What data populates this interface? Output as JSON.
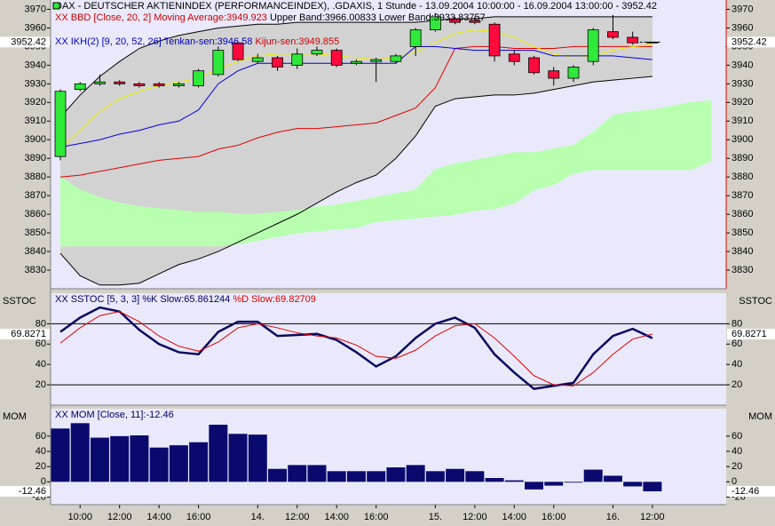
{
  "chart_data": [
    {
      "type": "candlestick",
      "legend": [
        [
          {
            "text": "DAX  - DEUTSCHER AKTIENINDEX (PERFORMANCEINDEX), .GDAXIS, 1 Stunde - 13.09.2004 10:00:00 - 16.09.2004 13:00:00 - 3952.42",
            "color": "#000000"
          }
        ],
        [
          {
            "text": "XX BBD [Close, 20, 2] Moving Average:3949.923",
            "color": "#d00000"
          },
          {
            "text": " Upper Band:3966.00833 Lower Band:3933.83757",
            "color": "#000000"
          }
        ],
        [
          {
            "text": "XX IKH(2) [9, 20, 52, 26] Tenkan-sen:3946.58",
            "color": "#0000c0"
          },
          {
            "text": " Kijun-sen:3949.855",
            "color": "#d00000"
          }
        ]
      ],
      "categories": [
        null,
        "10:00",
        null,
        "12:00",
        null,
        "14:00",
        null,
        "16:00",
        null,
        null,
        "14.",
        null,
        "12:00",
        null,
        "14:00",
        null,
        "16:00",
        null,
        null,
        "15.",
        null,
        "12:00",
        null,
        "14:00",
        null,
        "16:00",
        null,
        null,
        "16.",
        null,
        "12:00",
        null,
        null,
        null
      ],
      "open": [
        3891,
        3927,
        3930,
        3931,
        3930,
        3930,
        3929,
        3929,
        3935,
        3952,
        3942,
        3944,
        3940,
        3946,
        3948,
        3941,
        3942,
        3942,
        3950,
        3959,
        3965,
        3964,
        3962,
        3946,
        3944,
        3937,
        3933,
        3942,
        3958,
        3955,
        3952.42,
        null,
        null,
        null
      ],
      "high": [
        3927,
        3931,
        3935,
        3932,
        3931,
        3931,
        3931,
        3938,
        3950,
        3953,
        3946,
        3945,
        3949,
        3950,
        3949,
        3943,
        3944,
        3946,
        3960,
        3968,
        3966,
        3966,
        3963,
        3948,
        3945,
        3939,
        3940,
        3960,
        3967,
        3958,
        3952.42,
        null,
        null,
        null
      ],
      "low": [
        3889,
        3926,
        3929,
        3929,
        3928,
        3928,
        3928,
        3928,
        3934,
        3942,
        3941,
        3937,
        3938,
        3945,
        3939,
        3940,
        3931,
        3941,
        3945,
        3958,
        3962,
        3962,
        3942,
        3940,
        3935,
        3929,
        3931,
        3940,
        3954,
        3951,
        3952.42,
        null,
        null,
        null
      ],
      "close": [
        3926,
        3930,
        3931,
        3930,
        3929,
        3929,
        3930,
        3937,
        3948,
        3943,
        3944,
        3939,
        3946,
        3948,
        3940,
        3942,
        3943,
        3945,
        3959,
        3966,
        3963,
        3963,
        3945,
        3942,
        3936,
        3933,
        3939,
        3959,
        3955,
        3952,
        3952.42,
        null,
        null,
        null
      ],
      "up_color": "#2ee83a",
      "down_color": "#ff0a3c",
      "band_fill": "#d2d2d2",
      "cloud": {
        "color": "#b8ffb0",
        "upper": [
          3880,
          3873,
          3869,
          3866,
          3864,
          3863,
          3862,
          3861,
          3861,
          3860,
          3860,
          3861,
          3862,
          3864,
          3865,
          3867,
          3869,
          3871,
          3873,
          3884,
          3887,
          3889,
          3891,
          3893,
          3893,
          3895,
          3897,
          3904,
          3913,
          3915,
          3916,
          3918,
          3920,
          3921
        ],
        "lower": [
          3843,
          3843,
          3843,
          3843,
          3843,
          3843,
          3843,
          3843,
          3843,
          3844,
          3846,
          3848,
          3850,
          3851,
          3852,
          3853,
          3856,
          3857,
          3858,
          3859,
          3860,
          3862,
          3863,
          3866,
          3873,
          3876,
          3882,
          3884,
          3884,
          3884,
          3884,
          3884,
          3884,
          3889
        ]
      },
      "series": [
        {
          "color": "#000000",
          "values": [
            3912,
            3924,
            3934,
            3942,
            3949,
            3953,
            3956,
            3958,
            3960,
            3961,
            3962,
            3962,
            3963,
            3963,
            3963,
            3963,
            3963,
            3963,
            3963,
            3964,
            3965,
            3965,
            3966,
            3966,
            3966,
            3966,
            3966,
            3966,
            3966,
            3966,
            3966,
            null,
            null,
            null
          ]
        },
        {
          "color": "#000000",
          "values": [
            3839,
            3827,
            3822,
            3822,
            3823,
            3828,
            3833,
            3836,
            3840,
            3845,
            3850,
            3855,
            3860,
            3866,
            3872,
            3877,
            3881,
            3890,
            3902,
            3918,
            3922,
            3923,
            3924,
            3924,
            3925,
            3927,
            3929,
            3931,
            3932,
            3933,
            3934,
            null,
            null,
            null
          ]
        },
        {
          "color": "#e00000",
          "values": [
            3880,
            3881,
            3883,
            3885,
            3887,
            3889,
            3890,
            3891,
            3895,
            3897,
            3901,
            3904,
            3906,
            3906,
            3907,
            3908,
            3909,
            3913,
            3917,
            3928,
            3949,
            3950,
            3950,
            3949,
            3949,
            3949,
            3950,
            3950,
            3950,
            3950,
            3950,
            null,
            null,
            null
          ]
        },
        {
          "color": "#f0f000",
          "values": [
            3895,
            3905,
            3915,
            3922,
            3926,
            3929,
            3931,
            3933,
            3938,
            3942,
            3945,
            3946,
            3946,
            3946,
            3945,
            3944,
            3943,
            3944,
            3947,
            3952,
            3957,
            3959,
            3958,
            3955,
            3950,
            3946,
            3944,
            3945,
            3948,
            3950,
            3951,
            null,
            null,
            null
          ]
        },
        {
          "color": "#0000e0",
          "values": [
            3896,
            3898,
            3900,
            3903,
            3905,
            3908,
            3910,
            3916,
            3930,
            3937,
            3941,
            3941,
            3941,
            3941,
            3941,
            3941,
            3941,
            3941,
            3950,
            3950,
            3949,
            3948,
            3948,
            3948,
            3948,
            3945,
            3945,
            3945,
            3945,
            3944,
            3943,
            null,
            null,
            null
          ]
        }
      ],
      "last_value": 3952.42,
      "ylim": [
        3820,
        3975
      ],
      "yticks": [
        3830,
        3840,
        3850,
        3860,
        3870,
        3880,
        3890,
        3900,
        3910,
        3920,
        3930,
        3940,
        3950,
        3960,
        3970
      ]
    },
    {
      "type": "line",
      "panel_label": "SSTOC",
      "legend": [
        [
          {
            "text": "XX SSTOC [5, 3, 3] %K Slow:65.861244",
            "color": "#000060"
          },
          {
            "text": " %D Slow:69.82709",
            "color": "#e00000"
          }
        ]
      ],
      "series": [
        {
          "color": "#0a0a60",
          "width": 2.5,
          "values": [
            72,
            86,
            96,
            92,
            74,
            60,
            52,
            50,
            72,
            82,
            82,
            68,
            69,
            70,
            64,
            52,
            38,
            48,
            66,
            80,
            86,
            76,
            50,
            32,
            16,
            19,
            22,
            50,
            68,
            75,
            65.86,
            null,
            null,
            null
          ]
        },
        {
          "color": "#e00000",
          "width": 1,
          "values": [
            61,
            76,
            88,
            92,
            82,
            68,
            58,
            53,
            62,
            76,
            80,
            76,
            71,
            68,
            66,
            59,
            48,
            46,
            54,
            68,
            78,
            80,
            66,
            48,
            29,
            20,
            19,
            32,
            50,
            65,
            69.83,
            null,
            null,
            null
          ]
        }
      ],
      "hlines": [
        80,
        20
      ],
      "last_value": 69.8271,
      "ylim": [
        0,
        110
      ],
      "yticks": [
        20,
        40,
        60,
        80
      ]
    },
    {
      "type": "bar",
      "panel_label": "MOM",
      "legend": [
        [
          {
            "text": "XX MOM [Close, 11]:-12.46",
            "color": "#000060"
          }
        ]
      ],
      "color": "#0a0a6e",
      "values": [
        70,
        77,
        58,
        60,
        61,
        45,
        48,
        52,
        75,
        63,
        62,
        17,
        22,
        22,
        14,
        14,
        14,
        19,
        22,
        14,
        17,
        14,
        5,
        2,
        -10,
        -5,
        -1,
        16,
        8,
        -6,
        -12.46,
        null,
        null,
        null
      ],
      "last_value": -12.46,
      "ylim": [
        -30,
        96
      ],
      "yticks": [
        {
          "value": -20,
          "label": "-20"
        },
        0,
        20,
        40,
        60
      ]
    }
  ]
}
